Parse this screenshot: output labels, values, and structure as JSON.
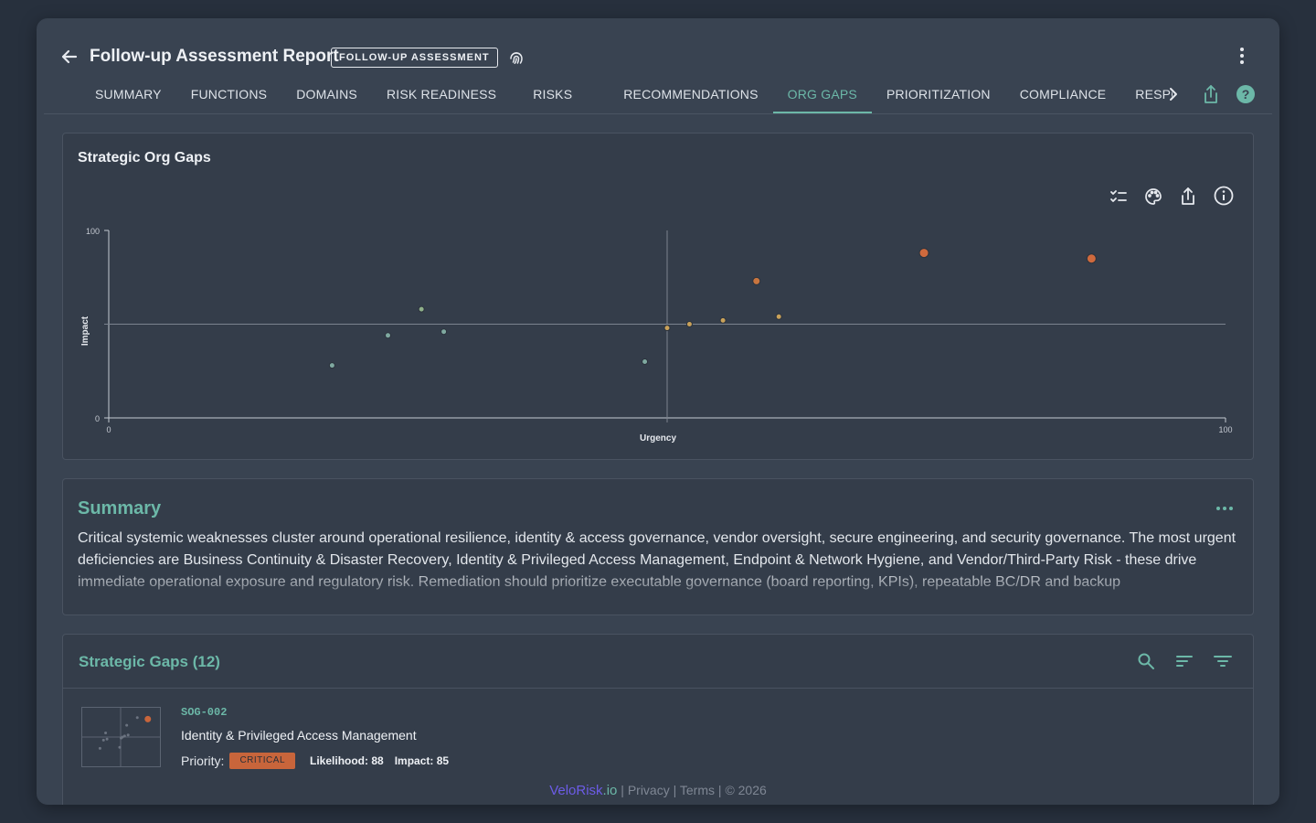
{
  "header": {
    "title": "Follow-up Assessment Report",
    "tag": "FOLLOW-UP ASSESSMENT"
  },
  "tabs": [
    {
      "label": "SUMMARY"
    },
    {
      "label": "FUNCTIONS"
    },
    {
      "label": "DOMAINS"
    },
    {
      "label": "RISK READINESS"
    },
    {
      "label": "RISKS"
    },
    {
      "label": "RECOMMENDATIONS"
    },
    {
      "label": "ORG GAPS",
      "active": true
    },
    {
      "label": "PRIORITIZATION"
    },
    {
      "label": "COMPLIANCE"
    },
    {
      "label": "RESPONSI"
    }
  ],
  "chart_card": {
    "title": "Strategic Org Gaps"
  },
  "chart_data": {
    "type": "scatter",
    "xlabel": "Urgency",
    "ylabel": "Impact",
    "xlim": [
      0,
      100
    ],
    "ylim": [
      0,
      100
    ],
    "x_ticks": [
      "0",
      "100"
    ],
    "y_ticks": [
      "0",
      "100"
    ],
    "quadrant_lines": {
      "x": 50,
      "y": 50
    },
    "points": [
      {
        "x": 20,
        "y": 28,
        "size": "small",
        "color": "#7fa9a0"
      },
      {
        "x": 25,
        "y": 44,
        "size": "small",
        "color": "#7fa9a0"
      },
      {
        "x": 28,
        "y": 58,
        "size": "small",
        "color": "#8fb08a"
      },
      {
        "x": 30,
        "y": 46,
        "size": "small",
        "color": "#7fa9a0"
      },
      {
        "x": 48,
        "y": 30,
        "size": "small",
        "color": "#7fa9a0"
      },
      {
        "x": 50,
        "y": 48,
        "size": "small",
        "color": "#c9a25a"
      },
      {
        "x": 52,
        "y": 50,
        "size": "small",
        "color": "#c9a25a"
      },
      {
        "x": 55,
        "y": 52,
        "size": "small",
        "color": "#c9a25a"
      },
      {
        "x": 58,
        "y": 73,
        "size": "medium",
        "color": "#c8753f"
      },
      {
        "x": 60,
        "y": 54,
        "size": "small",
        "color": "#c9a25a"
      },
      {
        "x": 73,
        "y": 88,
        "size": "large",
        "color": "#cf6a3d"
      },
      {
        "x": 88,
        "y": 85,
        "size": "large",
        "color": "#cf6a3d"
      }
    ]
  },
  "summary": {
    "title": "Summary",
    "text": "Critical systemic weaknesses cluster around operational resilience, identity & access governance, vendor oversight, secure engineering, and security governance. The most urgent deficiencies are Business Continuity & Disaster Recovery, Identity & Privileged Access Management, Endpoint & Network Hygiene, and Vendor/Third-Party Risk - these drive immediate operational exposure and regulatory risk. Remediation should prioritize executable governance (board reporting, KPIs), repeatable BC/DR and backup"
  },
  "gaps": {
    "title": "Strategic Gaps (12)",
    "items": [
      {
        "id": "SOG-002",
        "name": "Identity & Privileged Access Management",
        "priority_label": "Priority:",
        "priority": "CRITICAL",
        "likelihood": "Likelihood: 88",
        "impact": "Impact: 85"
      }
    ]
  },
  "footer": {
    "brand": "VeloRisk",
    "brand_suffix": ".io",
    "links": [
      "Privacy",
      "Terms",
      "© 2026"
    ]
  },
  "colors": {
    "accent": "#6cb8a8",
    "critical": "#c8653b",
    "background": "#27303d",
    "panel": "#394351"
  },
  "icons": {
    "back": "arrow-left-icon",
    "fingerprint": "fingerprint-icon",
    "more": "more-vert-icon",
    "share": "share-icon",
    "help": "help-icon",
    "checklist": "checklist-icon",
    "palette": "palette-icon",
    "info": "info-icon",
    "search": "search-icon",
    "sort": "sort-icon",
    "filter": "filter-icon"
  }
}
